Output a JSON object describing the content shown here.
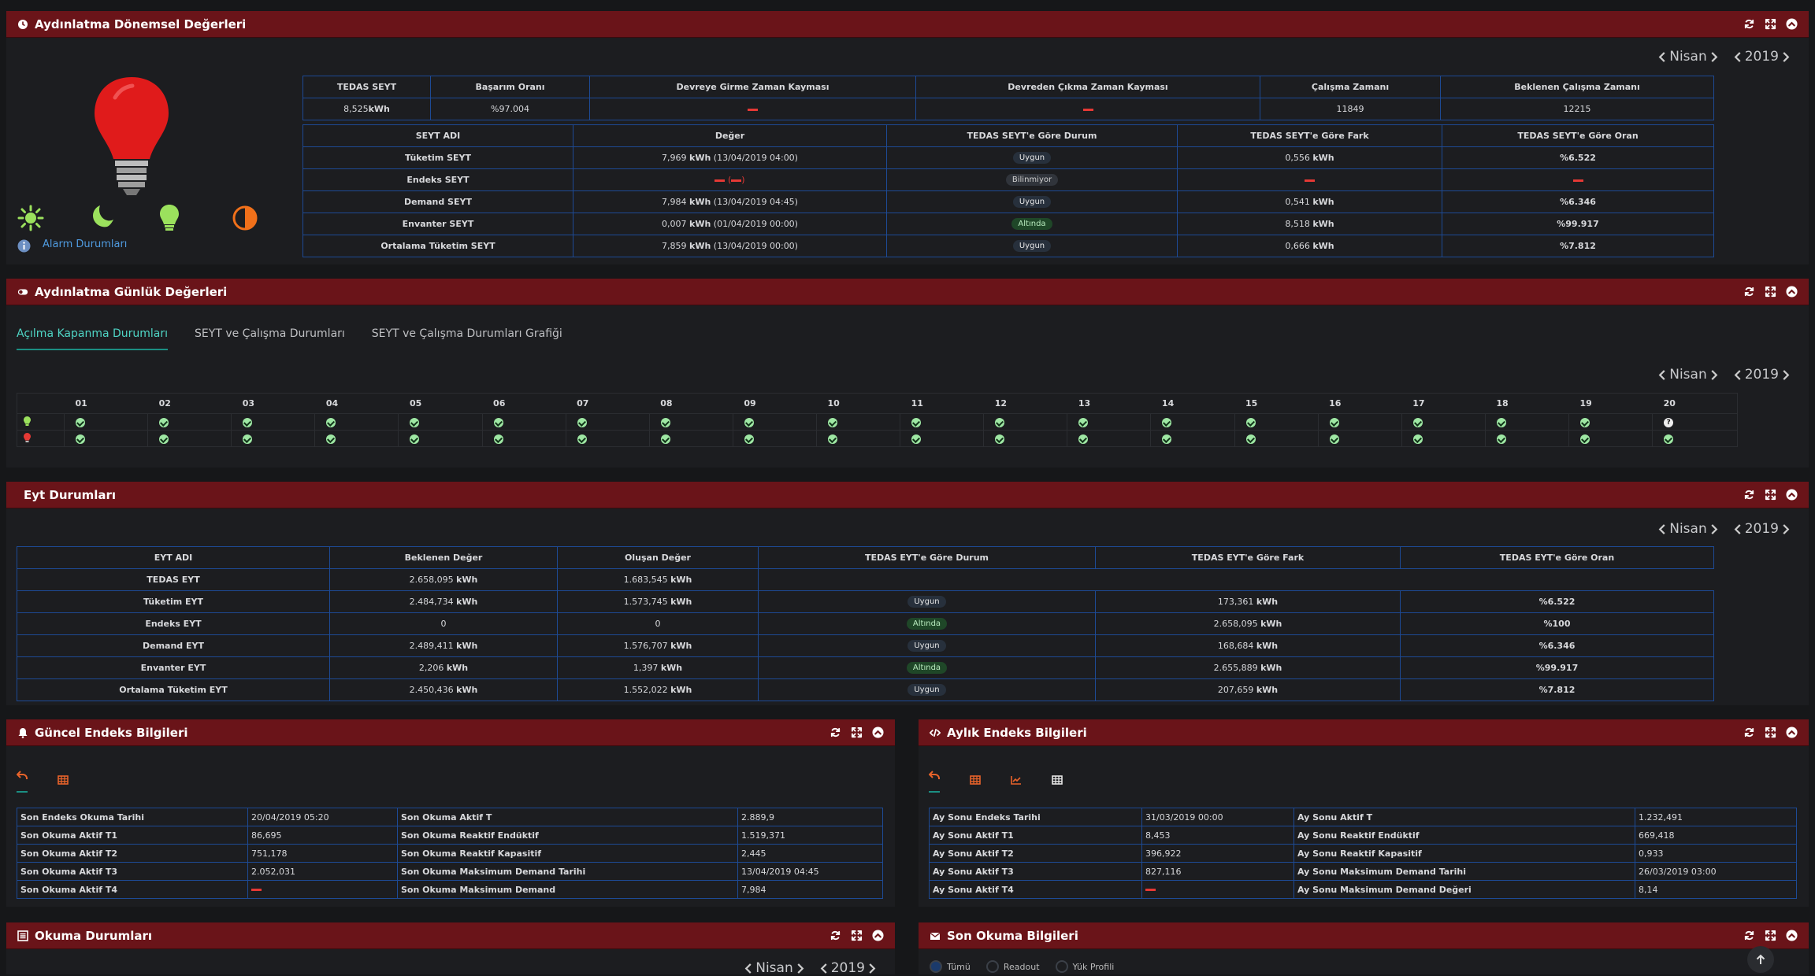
{
  "periodic": {
    "title": "Aydınlatma Dönemsel Değerleri",
    "month": "Nisan",
    "year": "2019",
    "alarm_label": "Alarm Durumları",
    "summary": {
      "headers": [
        "TEDAS SEYT",
        "Başarım Oranı",
        "Devreye Girme Zaman Kayması",
        "Devreden Çıkma Zaman Kayması",
        "Çalışma Zamanı",
        "Beklenen Çalışma Zamanı"
      ],
      "tedas_num": "8,525",
      "tedas_unit": "kWh",
      "basarim": "%97.004",
      "calisma": "11849",
      "beklenen": "12215"
    },
    "seyt_headers": [
      "SEYT ADI",
      "Değer",
      "TEDAS SEYT'e Göre Durum",
      "TEDAS SEYT'e Göre Fark",
      "TEDAS SEYT'e Göre Oran"
    ],
    "seyt_rows": [
      {
        "name": "Tüketim SEYT",
        "num": "7,969",
        "unit": "kWh",
        "date": "(13/04/2019 04:00)",
        "status": "Uygun",
        "fark": "0,556",
        "fark_unit": "kWh",
        "oran": "%6.522"
      },
      {
        "name": "Endeks SEYT",
        "status": "Bilinmiyor"
      },
      {
        "name": "Demand SEYT",
        "num": "7,984",
        "unit": "kWh",
        "date": "(13/04/2019 04:45)",
        "status": "Uygun",
        "fark": "0,541",
        "fark_unit": "kWh",
        "oran": "%6.346"
      },
      {
        "name": "Envanter SEYT",
        "num": "0,007",
        "unit": "kWh",
        "date": "(01/04/2019 00:00)",
        "status": "Altında",
        "fark": "8,518",
        "fark_unit": "kWh",
        "oran": "%99.917"
      },
      {
        "name": "Ortalama Tüketim SEYT",
        "num": "7,859",
        "unit": "kWh",
        "date": "(13/04/2019 00:00)",
        "status": "Uygun",
        "fark": "0,666",
        "fark_unit": "kWh",
        "oran": "%7.812"
      }
    ]
  },
  "daily": {
    "title": "Aydınlatma Günlük Değerleri",
    "tabs": [
      "Açılma Kapanma Durumları",
      "SEYT ve Çalışma Durumları",
      "SEYT ve Çalışma Durumları Grafiği"
    ],
    "month": "Nisan",
    "year": "2019",
    "days": [
      "01",
      "02",
      "03",
      "04",
      "05",
      "06",
      "07",
      "08",
      "09",
      "10",
      "11",
      "12",
      "13",
      "14",
      "15",
      "16",
      "17",
      "18",
      "19",
      "20"
    ]
  },
  "eyt": {
    "title": "Eyt Durumları",
    "month": "Nisan",
    "year": "2019",
    "headers": [
      "EYT ADI",
      "Beklenen Değer",
      "Oluşan Değer",
      "TEDAS EYT'e Göre Durum",
      "TEDAS EYT'e Göre Fark",
      "TEDAS EYT'e Göre Oran"
    ],
    "rows": [
      {
        "name": "TEDAS EYT",
        "bek": "2.658,095",
        "bek_unit": "kWh",
        "olu": "1.683,545",
        "olu_unit": "kWh"
      },
      {
        "name": "Tüketim EYT",
        "bek": "2.484,734",
        "bek_unit": "kWh",
        "olu": "1.573,745",
        "olu_unit": "kWh",
        "status": "Uygun",
        "fark": "173,361",
        "fark_unit": "kWh",
        "oran": "%6.522"
      },
      {
        "name": "Endeks EYT",
        "bek": "0",
        "olu": "0",
        "status": "Altında",
        "fark": "2.658,095",
        "fark_unit": "kWh",
        "oran": "%100"
      },
      {
        "name": "Demand EYT",
        "bek": "2.489,411",
        "bek_unit": "kWh",
        "olu": "1.576,707",
        "olu_unit": "kWh",
        "status": "Uygun",
        "fark": "168,684",
        "fark_unit": "kWh",
        "oran": "%6.346"
      },
      {
        "name": "Envanter EYT",
        "bek": "2,206",
        "bek_unit": "kWh",
        "olu": "1,397",
        "olu_unit": "kWh",
        "status": "Altında",
        "fark": "2.655,889",
        "fark_unit": "kWh",
        "oran": "%99.917"
      },
      {
        "name": "Ortalama Tüketim EYT",
        "bek": "2.450,436",
        "bek_unit": "kWh",
        "olu": "1.552,022",
        "olu_unit": "kWh",
        "status": "Uygun",
        "fark": "207,659",
        "fark_unit": "kWh",
        "oran": "%7.812"
      }
    ]
  },
  "guncel": {
    "title": "Güncel Endeks Bilgileri",
    "rows": [
      [
        "Son Endeks Okuma Tarihi",
        "20/04/2019 05:20",
        "Son Okuma Aktif T",
        "2.889,9"
      ],
      [
        "Son Okuma Aktif T1",
        "86,695",
        "Son Okuma Reaktif Endüktif",
        "1.519,371"
      ],
      [
        "Son Okuma Aktif T2",
        "751,178",
        "Son Okuma Reaktif Kapasitif",
        "2,445"
      ],
      [
        "Son Okuma Aktif T3",
        "2.052,031",
        "Son Okuma Maksimum Demand Tarihi",
        "13/04/2019 04:45"
      ],
      [
        "Son Okuma Aktif T4",
        "",
        "Son Okuma Maksimum Demand",
        "7,984"
      ]
    ]
  },
  "aylik": {
    "title": "Aylık Endeks Bilgileri",
    "rows": [
      [
        "Ay Sonu Endeks Tarihi",
        "31/03/2019 00:00",
        "Ay Sonu Aktif T",
        "1.232,491"
      ],
      [
        "Ay Sonu Aktif T1",
        "8,453",
        "Ay Sonu Reaktif Endüktif",
        "669,418"
      ],
      [
        "Ay Sonu Aktif T2",
        "396,922",
        "Ay Sonu Reaktif Kapasitif",
        "0,933"
      ],
      [
        "Ay Sonu Aktif T3",
        "827,116",
        "Ay Sonu Maksimum Demand Tarihi",
        "26/03/2019 03:00"
      ],
      [
        "Ay Sonu Aktif T4",
        "",
        "Ay Sonu Maksimum Demand Değeri",
        "8,14"
      ]
    ]
  },
  "okuma": {
    "title": "Okuma Durumları",
    "month": "Nisan",
    "year": "2019"
  },
  "son_okuma": {
    "title": "Son Okuma Bilgileri",
    "radios": [
      "Tümü",
      "Readout",
      "Yük Profili"
    ]
  },
  "colors": {
    "header": "#6a1419",
    "accent": "#1b8f83",
    "border": "#1d4a95"
  }
}
